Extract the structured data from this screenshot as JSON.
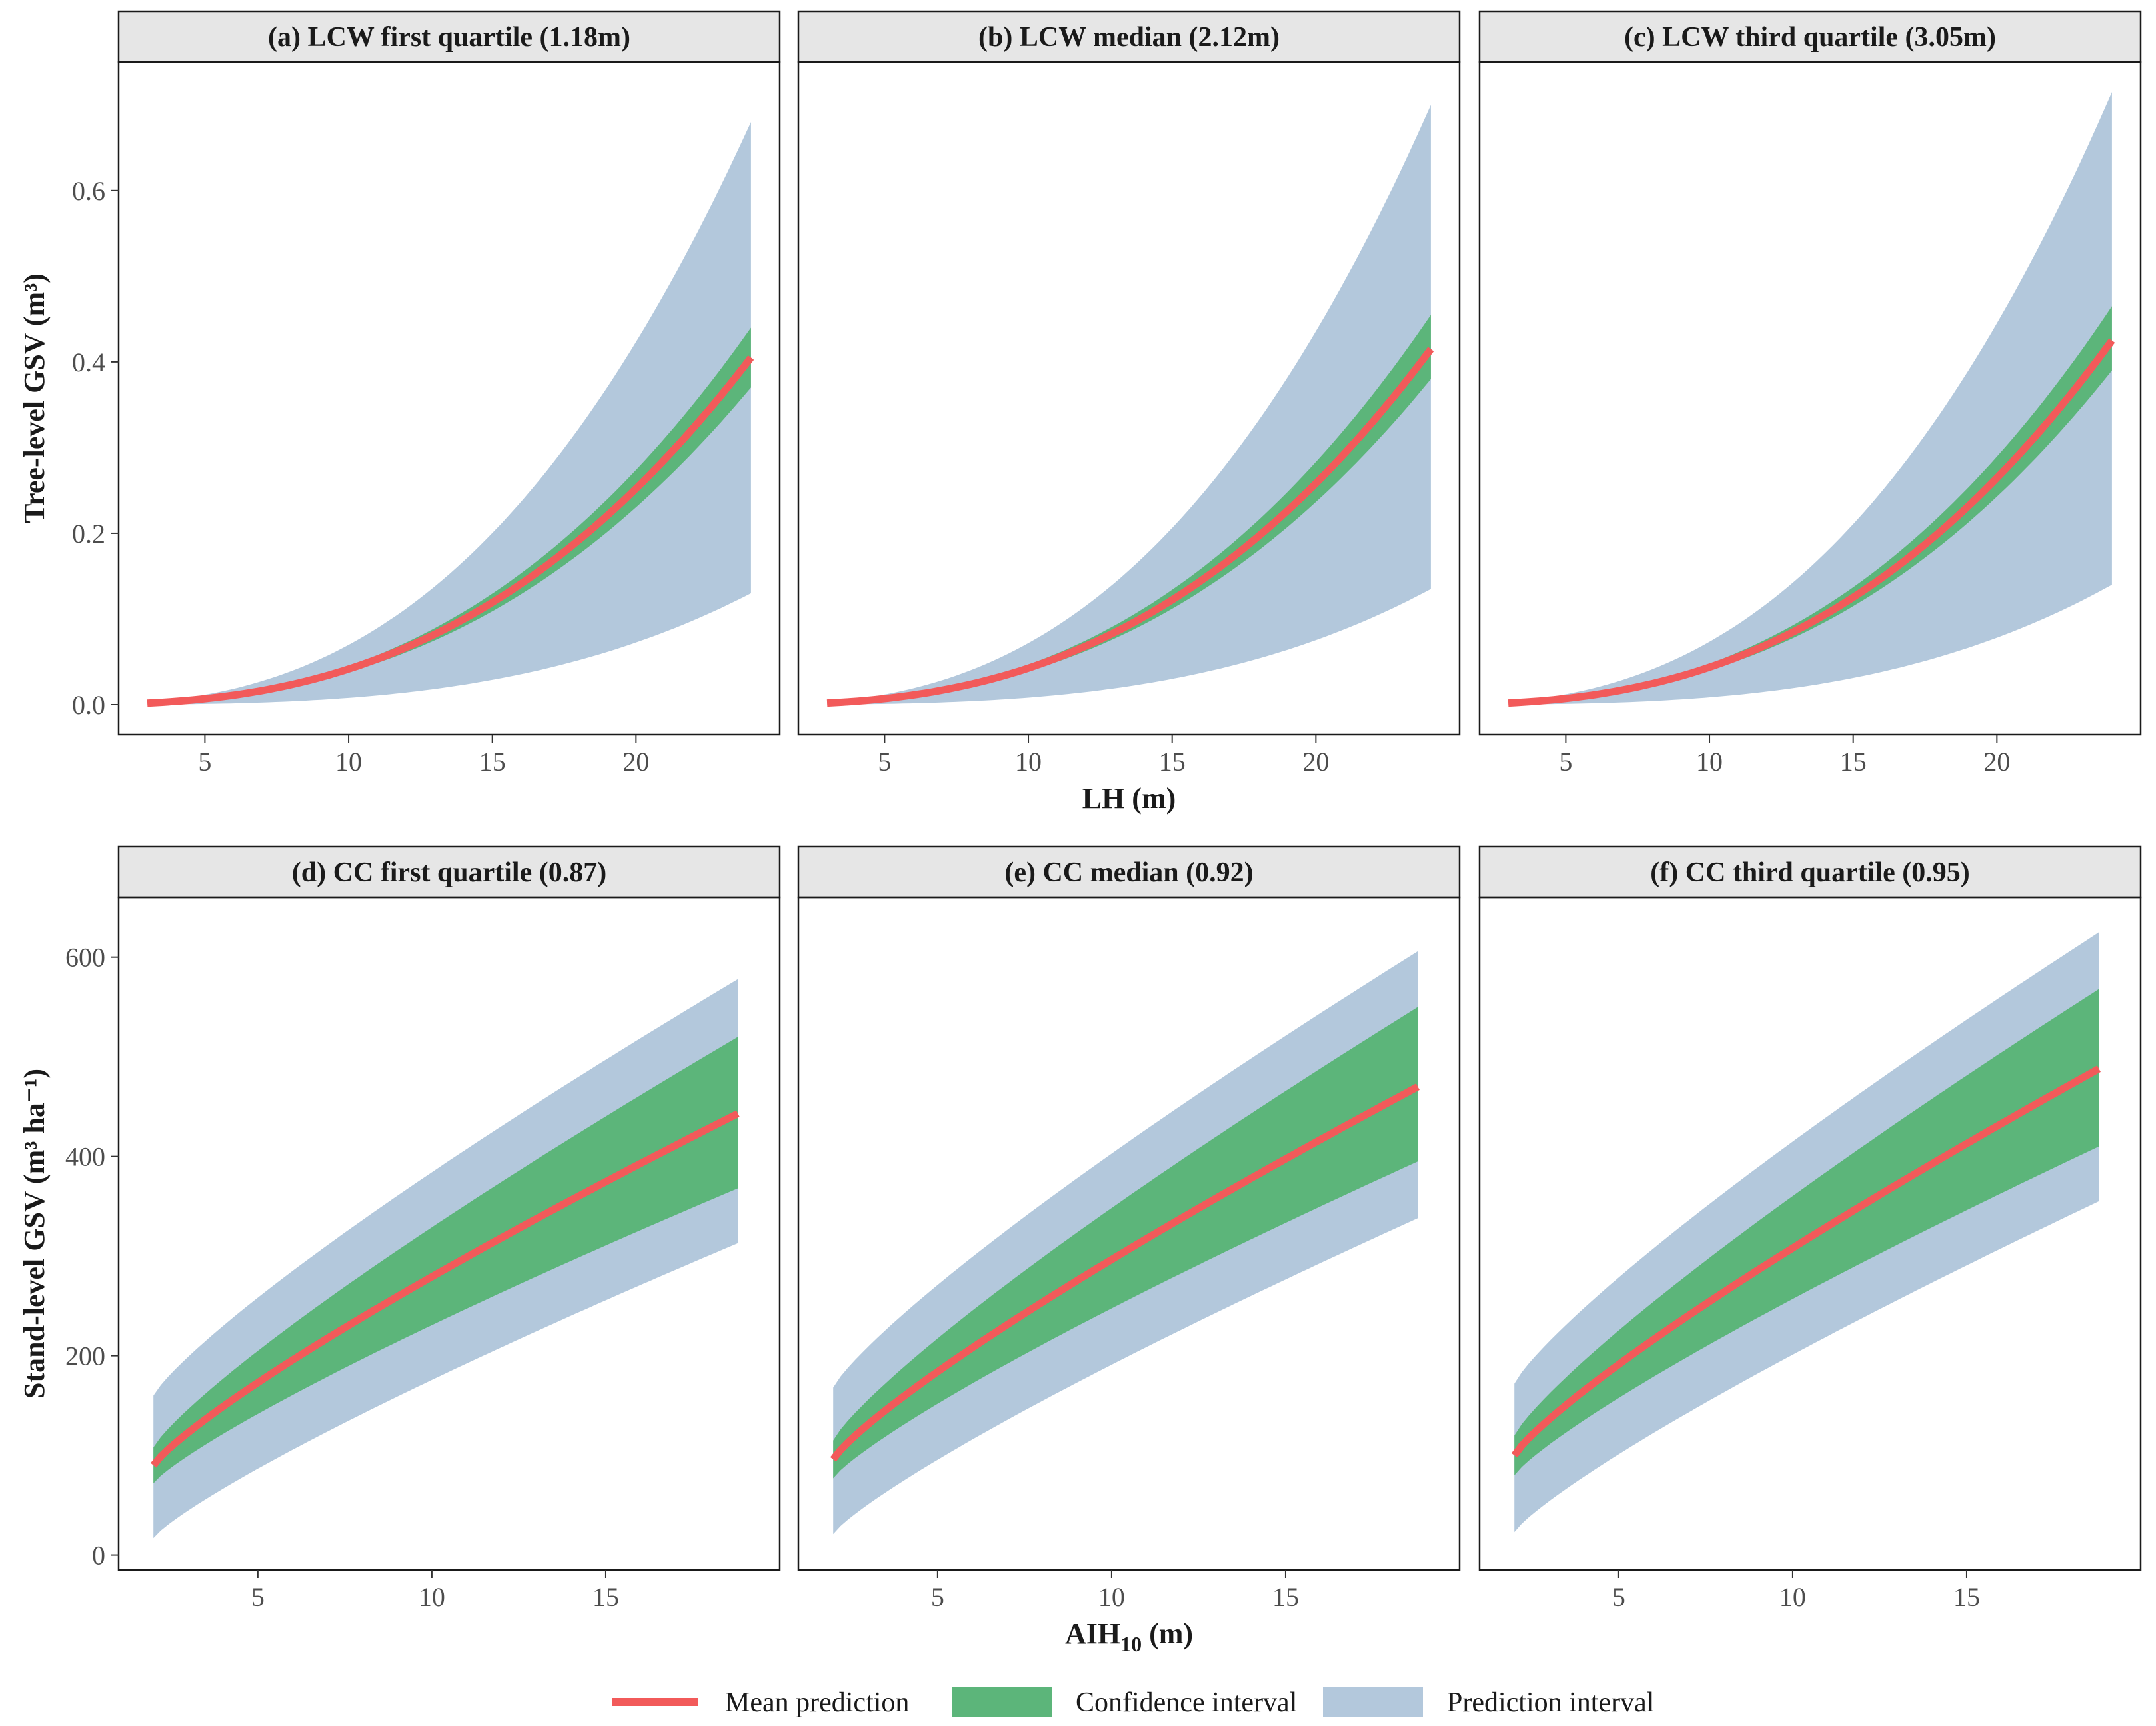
{
  "chart_data": {
    "type": "area",
    "layout": "2x3 facet grid",
    "rows": [
      {
        "ylabel": "Tree-level GSV (m³)",
        "xlabel": "LH (m)",
        "xlim": [
          2.0,
          25.0
        ],
        "ylim": [
          -0.035,
          0.75
        ],
        "x_ticks": [
          "5",
          "10",
          "15",
          "20"
        ],
        "y_ticks": [
          "0.0",
          "0.2",
          "0.4",
          "0.6"
        ],
        "panels": [
          {
            "title": "(a) LCW first quartile (1.18m)",
            "x_start": 3.0,
            "x_end": 24.0,
            "mean_end": 0.405,
            "ci_upper_end": 0.44,
            "ci_lower_end": 0.37,
            "pi_upper_end": 0.68,
            "pi_lower_end": 0.13
          },
          {
            "title": "(b) LCW median (2.12m)",
            "x_start": 3.0,
            "x_end": 24.0,
            "mean_end": 0.415,
            "ci_upper_end": 0.455,
            "ci_lower_end": 0.38,
            "pi_upper_end": 0.7,
            "pi_lower_end": 0.135
          },
          {
            "title": "(c) LCW third quartile (3.05m)",
            "x_start": 3.0,
            "x_end": 24.0,
            "mean_end": 0.425,
            "ci_upper_end": 0.465,
            "ci_lower_end": 0.39,
            "pi_upper_end": 0.715,
            "pi_lower_end": 0.14
          }
        ]
      },
      {
        "ylabel": "Stand-level GSV (m³ ha⁻¹)",
        "xlabel_main": "AIH",
        "xlabel_sub": "10",
        "xlabel_unit": " (m)",
        "xlim": [
          1.0,
          20.0
        ],
        "ylim": [
          -15,
          660
        ],
        "x_ticks": [
          "5",
          "10",
          "15"
        ],
        "y_ticks": [
          "0",
          "200",
          "400",
          "600"
        ],
        "panels": [
          {
            "title": "(d) CC first quartile (0.87)",
            "x_start": 2.0,
            "x_end": 18.8,
            "mean_start": 90,
            "mean_end": 443,
            "ci_upper_start": 108,
            "ci_upper_end": 520,
            "ci_lower_start": 72,
            "ci_lower_end": 368,
            "pi_upper_start": 160,
            "pi_upper_end": 578,
            "pi_lower_start": 17,
            "pi_lower_end": 313
          },
          {
            "title": "(e) CC median (0.92)",
            "x_start": 2.0,
            "x_end": 18.8,
            "mean_start": 96,
            "mean_end": 470,
            "ci_upper_start": 115,
            "ci_upper_end": 550,
            "ci_lower_start": 77,
            "ci_lower_end": 395,
            "pi_upper_start": 168,
            "pi_upper_end": 606,
            "pi_lower_start": 21,
            "pi_lower_end": 338
          },
          {
            "title": "(f) CC third quartile (0.95)",
            "x_start": 2.0,
            "x_end": 18.8,
            "mean_start": 100,
            "mean_end": 488,
            "ci_upper_start": 120,
            "ci_upper_end": 568,
            "ci_lower_start": 80,
            "ci_lower_end": 410,
            "pi_upper_start": 172,
            "pi_upper_end": 625,
            "pi_lower_start": 23,
            "pi_lower_end": 355
          }
        ]
      }
    ],
    "legend": {
      "position": "bottom",
      "items": [
        {
          "label": "Mean prediction",
          "kind": "line",
          "color": "#f25a5a"
        },
        {
          "label": "Confidence interval",
          "kind": "fill",
          "color": "#5cb57a"
        },
        {
          "label": "Prediction interval",
          "kind": "fill",
          "color": "#b3c8dc"
        }
      ]
    }
  },
  "colors": {
    "mean": "#f25a5a",
    "ci": "#5cb57a",
    "pi": "#b3c8dc",
    "strip": "#e6e6e6",
    "panel_border": "#1a1a1a"
  }
}
